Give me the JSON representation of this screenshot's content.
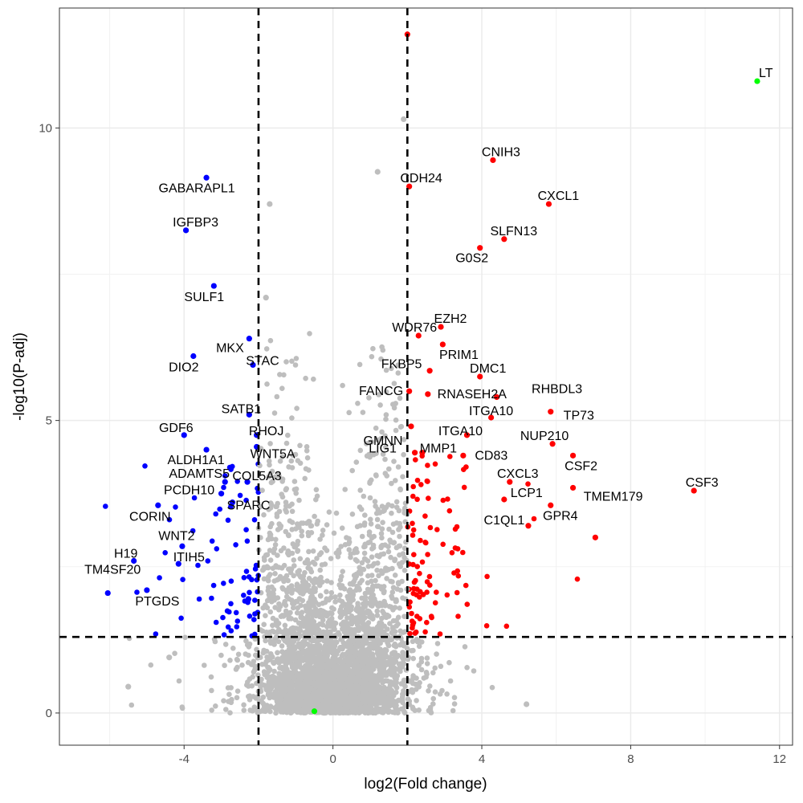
{
  "chart_data": {
    "type": "scatter",
    "title": "",
    "xlabel": "log2(Fold change)",
    "ylabel": "-log10(P-adj)",
    "xlim": [
      -7.35,
      12.35
    ],
    "ylim": [
      -0.55,
      12.05
    ],
    "x_ticks": [
      -4,
      0,
      4,
      8,
      12
    ],
    "y_ticks": [
      0,
      5,
      10
    ],
    "x_tick_labels": [
      "-4",
      "0",
      "4",
      "8",
      "12"
    ],
    "y_tick_labels": [
      "0",
      "5",
      "10"
    ],
    "grid": true,
    "thresholds": {
      "log2fc": [
        -2,
        2
      ],
      "neg_log10_padj": 1.3
    },
    "colors": {
      "up": "#ff0000",
      "down": "#0000ff",
      "highlight": "#00ff00",
      "ns": "#bebebe",
      "threshold_line": "#000000"
    },
    "labeled_points": [
      {
        "gene": "LT",
        "x": 11.4,
        "y": 10.8,
        "group": "highlight"
      },
      {
        "gene": "CNIH3",
        "x": 4.3,
        "y": 9.45,
        "group": "up"
      },
      {
        "gene": "CDH24",
        "x": 2.05,
        "y": 9.0,
        "group": "up"
      },
      {
        "gene": "CXCL1",
        "x": 5.8,
        "y": 8.7,
        "group": "up"
      },
      {
        "gene": "SLFN13",
        "x": 4.6,
        "y": 8.1,
        "group": "up"
      },
      {
        "gene": "G0S2",
        "x": 3.95,
        "y": 7.95,
        "group": "up"
      },
      {
        "gene": "EZH2",
        "x": 2.9,
        "y": 6.6,
        "group": "up"
      },
      {
        "gene": "WDR76",
        "x": 2.3,
        "y": 6.45,
        "group": "up"
      },
      {
        "gene": "PRIM1",
        "x": 2.95,
        "y": 6.3,
        "group": "up"
      },
      {
        "gene": "FKBP5",
        "x": 2.6,
        "y": 5.85,
        "group": "up"
      },
      {
        "gene": "DMC1",
        "x": 3.95,
        "y": 5.75,
        "group": "up"
      },
      {
        "gene": "FANCG",
        "x": 2.05,
        "y": 5.5,
        "group": "up"
      },
      {
        "gene": "RNASEH2A",
        "x": 2.55,
        "y": 5.45,
        "group": "up"
      },
      {
        "gene": "RHBDL3",
        "x": 4.4,
        "y": 5.4,
        "group": "up"
      },
      {
        "gene": "ITGA10",
        "x": 4.25,
        "y": 5.05,
        "group": "up"
      },
      {
        "gene": "TP73",
        "x": 5.85,
        "y": 5.15,
        "group": "up"
      },
      {
        "gene": "GMNN",
        "x": 2.1,
        "y": 4.9,
        "group": "up"
      },
      {
        "gene": "ITGA10",
        "x": 3.6,
        "y": 4.75,
        "group": "up"
      },
      {
        "gene": "NUP210",
        "x": 5.9,
        "y": 4.6,
        "group": "up"
      },
      {
        "gene": "LIG1",
        "x": 2.2,
        "y": 4.45,
        "group": "up"
      },
      {
        "gene": "MMP1",
        "x": 2.4,
        "y": 4.45,
        "group": "up"
      },
      {
        "gene": "CD83",
        "x": 3.5,
        "y": 4.4,
        "group": "up"
      },
      {
        "gene": "CSF2",
        "x": 6.45,
        "y": 4.4,
        "group": "up"
      },
      {
        "gene": "CXCL3",
        "x": 4.75,
        "y": 3.95,
        "group": "up"
      },
      {
        "gene": "CSF3",
        "x": 9.7,
        "y": 3.8,
        "group": "up"
      },
      {
        "gene": "TMEM179",
        "x": 6.45,
        "y": 3.85,
        "group": "up"
      },
      {
        "gene": "LCP1",
        "x": 4.6,
        "y": 3.65,
        "group": "up"
      },
      {
        "gene": "GPR4",
        "x": 5.85,
        "y": 3.55,
        "group": "up"
      },
      {
        "gene": "C1QL1",
        "x": 5.25,
        "y": 3.2,
        "group": "up"
      },
      {
        "gene": "GABARAPL1",
        "x": -3.4,
        "y": 9.15,
        "group": "down"
      },
      {
        "gene": "IGFBP3",
        "x": -3.95,
        "y": 8.25,
        "group": "down"
      },
      {
        "gene": "SULF1",
        "x": -3.2,
        "y": 7.3,
        "group": "down"
      },
      {
        "gene": "MKX",
        "x": -2.25,
        "y": 6.4,
        "group": "down"
      },
      {
        "gene": "DIO2",
        "x": -3.75,
        "y": 6.1,
        "group": "down"
      },
      {
        "gene": "STAC",
        "x": -2.15,
        "y": 5.95,
        "group": "down"
      },
      {
        "gene": "SATB1",
        "x": -2.25,
        "y": 5.1,
        "group": "down"
      },
      {
        "gene": "GDF6",
        "x": -4.0,
        "y": 4.75,
        "group": "down"
      },
      {
        "gene": "RHOJ",
        "x": -2.05,
        "y": 4.75,
        "group": "down"
      },
      {
        "gene": "ALDH1A1",
        "x": -3.4,
        "y": 4.5,
        "group": "down"
      },
      {
        "gene": "WNT5A",
        "x": -2.05,
        "y": 4.55,
        "group": "down"
      },
      {
        "gene": "ADAMTS5",
        "x": -2.9,
        "y": 3.95,
        "group": "down"
      },
      {
        "gene": "COL5A3",
        "x": -2.3,
        "y": 3.95,
        "group": "down"
      },
      {
        "gene": "PCDH10",
        "x": -3.0,
        "y": 3.75,
        "group": "down"
      },
      {
        "gene": "SPARC",
        "x": -2.7,
        "y": 3.6,
        "group": "down"
      },
      {
        "gene": "CORIN",
        "x": -4.7,
        "y": 3.55,
        "group": "down"
      },
      {
        "gene": "WNT2",
        "x": -4.05,
        "y": 2.85,
        "group": "down"
      },
      {
        "gene": "H19",
        "x": -5.35,
        "y": 2.6,
        "group": "down"
      },
      {
        "gene": "ITIH5",
        "x": -4.15,
        "y": 2.55,
        "group": "down"
      },
      {
        "gene": "TM4SF20",
        "x": -6.05,
        "y": 2.05,
        "group": "down"
      },
      {
        "gene": "PTGDS",
        "x": -5.0,
        "y": 2.1,
        "group": "down"
      }
    ],
    "other_points": [
      {
        "x": -0.5,
        "y": 0.03,
        "group": "highlight"
      },
      {
        "x": 2.0,
        "y": 11.6,
        "group": "up"
      },
      {
        "x": 7.05,
        "y": 3.0,
        "group": "up"
      },
      {
        "x": 1.9,
        "y": 10.15,
        "group": "ns"
      },
      {
        "x": 1.2,
        "y": 9.25,
        "group": "ns"
      },
      {
        "x": -1.7,
        "y": 8.7,
        "group": "ns"
      },
      {
        "x": -1.8,
        "y": 7.1,
        "group": "ns"
      },
      {
        "x": 5.2,
        "y": 0.15,
        "group": "ns"
      },
      {
        "x": -5.5,
        "y": 0.45,
        "group": "ns"
      },
      {
        "x": -4.4,
        "y": 0.95,
        "group": "ns"
      }
    ],
    "labels": [
      {
        "text": "LT",
        "x": 11.4,
        "y": 10.8,
        "anchor": "start",
        "dx": 2,
        "dy": -5
      },
      {
        "text": "CNIH3",
        "x": 4.3,
        "y": 9.45,
        "anchor": "middle",
        "dx": 10,
        "dy": -5
      },
      {
        "text": "CDH24",
        "x": 2.05,
        "y": 9.0,
        "anchor": "middle",
        "dx": 15,
        "dy": -5
      },
      {
        "text": "CXCL1",
        "x": 5.8,
        "y": 8.7,
        "anchor": "middle",
        "dx": 12,
        "dy": -5
      },
      {
        "text": "SLFN13",
        "x": 4.6,
        "y": 8.1,
        "anchor": "middle",
        "dx": 12,
        "dy": -5
      },
      {
        "text": "G0S2",
        "x": 3.95,
        "y": 7.95,
        "anchor": "middle",
        "dx": -10,
        "dy": 18
      },
      {
        "text": "EZH2",
        "x": 2.9,
        "y": 6.6,
        "anchor": "middle",
        "dx": 12,
        "dy": -5
      },
      {
        "text": "WDR76",
        "x": 2.3,
        "y": 6.45,
        "anchor": "middle",
        "dx": -5,
        "dy": -5
      },
      {
        "text": "PRIM1",
        "x": 2.95,
        "y": 6.3,
        "anchor": "middle",
        "dx": 20,
        "dy": 18
      },
      {
        "text": "FKBP5",
        "x": 2.6,
        "y": 5.85,
        "anchor": "middle",
        "dx": -35,
        "dy": -3
      },
      {
        "text": "DMC1",
        "x": 3.95,
        "y": 5.75,
        "anchor": "middle",
        "dx": 10,
        "dy": -5
      },
      {
        "text": "FANCG",
        "x": 2.05,
        "y": 5.5,
        "anchor": "middle",
        "dx": -35,
        "dy": 5
      },
      {
        "text": "RNASEH2A",
        "x": 2.55,
        "y": 5.45,
        "anchor": "middle",
        "dx": 55,
        "dy": 5
      },
      {
        "text": "RHBDL3",
        "x": 4.4,
        "y": 5.4,
        "anchor": "middle",
        "dx": 75,
        "dy": -5
      },
      {
        "text": "ITGA10",
        "x": 4.25,
        "y": 5.05,
        "anchor": "middle",
        "dx": 0,
        "dy": -3
      },
      {
        "text": "TP73",
        "x": 5.85,
        "y": 5.15,
        "anchor": "middle",
        "dx": 35,
        "dy": 10
      },
      {
        "text": "GMNN",
        "x": 2.1,
        "y": 4.9,
        "anchor": "middle",
        "dx": -35,
        "dy": 23
      },
      {
        "text": "ITGA10",
        "x": 3.6,
        "y": 4.75,
        "anchor": "middle",
        "dx": -8,
        "dy": 0
      },
      {
        "text": "NUP210",
        "x": 5.9,
        "y": 4.6,
        "anchor": "middle",
        "dx": -10,
        "dy": -5
      },
      {
        "text": "LIG1",
        "x": 2.2,
        "y": 4.45,
        "anchor": "middle",
        "dx": -40,
        "dy": 0
      },
      {
        "text": "MMP1",
        "x": 2.4,
        "y": 4.45,
        "anchor": "middle",
        "dx": 20,
        "dy": 0
      },
      {
        "text": "CD83",
        "x": 3.5,
        "y": 4.4,
        "anchor": "middle",
        "dx": 35,
        "dy": 5
      },
      {
        "text": "CSF2",
        "x": 6.45,
        "y": 4.4,
        "anchor": "middle",
        "dx": 10,
        "dy": 18
      },
      {
        "text": "CXCL3",
        "x": 4.75,
        "y": 3.95,
        "anchor": "middle",
        "dx": 10,
        "dy": -5
      },
      {
        "text": "CSF3",
        "x": 9.7,
        "y": 3.8,
        "anchor": "middle",
        "dx": 10,
        "dy": -5
      },
      {
        "text": "TMEM179",
        "x": 6.45,
        "y": 3.85,
        "anchor": "middle",
        "dx": 50,
        "dy": 16
      },
      {
        "text": "LCP1",
        "x": 4.6,
        "y": 3.65,
        "anchor": "middle",
        "dx": 28,
        "dy": -3
      },
      {
        "text": "GPR4",
        "x": 5.85,
        "y": 3.55,
        "anchor": "middle",
        "dx": 12,
        "dy": 18
      },
      {
        "text": "C1QL1",
        "x": 5.25,
        "y": 3.2,
        "anchor": "middle",
        "dx": -30,
        "dy": -2
      },
      {
        "text": "GABARAPL1",
        "x": -3.4,
        "y": 9.15,
        "anchor": "middle",
        "dx": -12,
        "dy": 18
      },
      {
        "text": "IGFBP3",
        "x": -3.95,
        "y": 8.25,
        "anchor": "middle",
        "dx": 12,
        "dy": -5
      },
      {
        "text": "SULF1",
        "x": -3.2,
        "y": 7.3,
        "anchor": "middle",
        "dx": -12,
        "dy": 19
      },
      {
        "text": "MKX",
        "x": -2.25,
        "y": 6.4,
        "anchor": "middle",
        "dx": -24,
        "dy": 17
      },
      {
        "text": "DIO2",
        "x": -3.75,
        "y": 6.1,
        "anchor": "middle",
        "dx": -12,
        "dy": 19
      },
      {
        "text": "STAC",
        "x": -2.15,
        "y": 5.95,
        "anchor": "middle",
        "dx": 12,
        "dy": 0
      },
      {
        "text": "SATB1",
        "x": -2.25,
        "y": 5.1,
        "anchor": "middle",
        "dx": -10,
        "dy": -2
      },
      {
        "text": "GDF6",
        "x": -4.0,
        "y": 4.75,
        "anchor": "middle",
        "dx": -10,
        "dy": -4
      },
      {
        "text": "RHOJ",
        "x": -2.05,
        "y": 4.75,
        "anchor": "middle",
        "dx": 12,
        "dy": 0
      },
      {
        "text": "ALDH1A1",
        "x": -3.4,
        "y": 4.5,
        "anchor": "middle",
        "dx": -13,
        "dy": 18
      },
      {
        "text": "WNT5A",
        "x": -2.05,
        "y": 4.55,
        "anchor": "middle",
        "dx": 20,
        "dy": 14
      },
      {
        "text": "ADAMTS5",
        "x": -2.9,
        "y": 3.95,
        "anchor": "middle",
        "dx": -32,
        "dy": -5
      },
      {
        "text": "COL5A3",
        "x": -2.3,
        "y": 3.95,
        "anchor": "middle",
        "dx": 12,
        "dy": -2
      },
      {
        "text": "PCDH10",
        "x": -3.0,
        "y": 3.75,
        "anchor": "middle",
        "dx": -40,
        "dy": 1
      },
      {
        "text": "SPARC",
        "x": -2.7,
        "y": 3.6,
        "anchor": "middle",
        "dx": 20,
        "dy": 9
      },
      {
        "text": "CORIN",
        "x": -4.7,
        "y": 3.55,
        "anchor": "middle",
        "dx": -10,
        "dy": 19
      },
      {
        "text": "WNT2",
        "x": -4.05,
        "y": 2.85,
        "anchor": "middle",
        "dx": -7,
        "dy": -8
      },
      {
        "text": "H19",
        "x": -5.35,
        "y": 2.6,
        "anchor": "middle",
        "dx": -10,
        "dy": -4
      },
      {
        "text": "ITIH5",
        "x": -4.15,
        "y": 2.55,
        "anchor": "middle",
        "dx": 13,
        "dy": -3
      },
      {
        "text": "TM4SF20",
        "x": -6.05,
        "y": 2.05,
        "anchor": "middle",
        "dx": 6,
        "dy": -24
      },
      {
        "text": "PTGDS",
        "x": -5.0,
        "y": 2.1,
        "anchor": "middle",
        "dx": 13,
        "dy": 19
      }
    ]
  }
}
